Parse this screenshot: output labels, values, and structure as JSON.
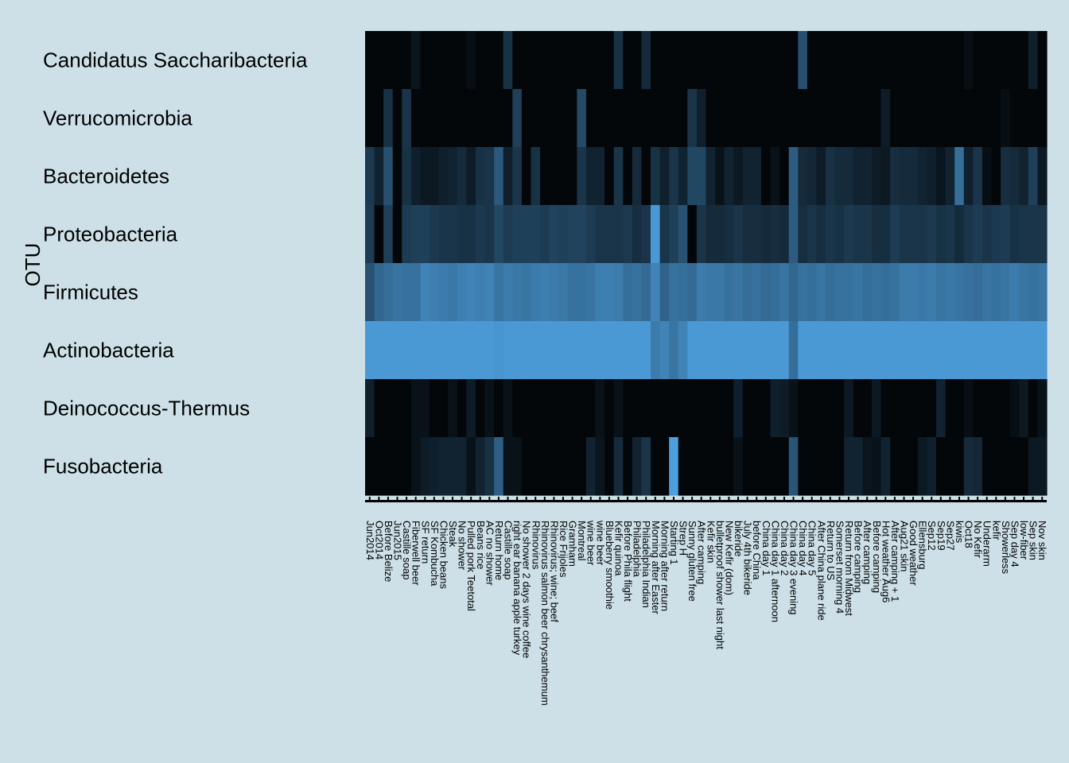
{
  "chart_data": {
    "type": "heatmap",
    "ylabel": "OTU",
    "xlabel": "",
    "rows": [
      "Candidatus Saccharibacteria",
      "Verrucomicrobia",
      "Bacteroidetes",
      "Proteobacteria",
      "Firmicutes",
      "Actinobacteria",
      "Deinococcus-Thermus",
      "Fusobacteria"
    ],
    "columns": [
      "Jun2014",
      "Oct2014",
      "Before Belize",
      "Jun2015",
      "Castille soap",
      "Fiberwell beer",
      "SF return",
      "SF Kombucha",
      "Chicken beans",
      "Steak",
      "No shower",
      "Pulled pork Teetotal",
      "Beans rice",
      "AC no shower",
      "Return home",
      "Castille soap",
      "right ear banana apple turkey",
      "No shower 2 days wine coffee",
      "Rhinovirus",
      "Rhinovirus salmon beer chrysanthemum",
      "Rhinovirus; wine; beef",
      "Rice Frijoles",
      "Gramham",
      "Montreal",
      "wine beer",
      "wine beer",
      "Blueberry smoothie",
      "Kefir quinoa",
      "Before Phila flight",
      "Philadelphia",
      "Philadelphia Indian",
      "Morning after Easter",
      "Morning after return",
      "Starting 1",
      "Strep H",
      "Sunny gluten free",
      "After camping",
      "Kefir skin",
      "bulletproof shower last night",
      "New Kefir (dom)",
      "bikeride",
      "July 4th bikeride",
      "before China",
      "China day 1",
      "China day 1 afternoon",
      "China day 2",
      "China day 3 evening",
      "China day 4",
      "China day 5",
      "After China plane ride",
      "Return to US",
      "Somerset morning 4",
      "Return from Midwest",
      "Before camping",
      "After camping",
      "Before camping",
      "Hot weather Aug6",
      "After camping + 1",
      "Aug21 skin",
      "Good weather",
      "Ellensburg",
      "Sep12",
      "Sep19",
      "Sep27",
      "kiwis",
      "Oct18",
      "No Kefir",
      "Underarm",
      "kefir",
      "Showerless",
      "Sep day 4",
      "low-fiber",
      "Sep skin",
      "Nov skin"
    ],
    "values": [
      [
        0.04,
        0.04,
        0.04,
        0.04,
        0.04,
        0.12,
        0.04,
        0.04,
        0.04,
        0.04,
        0.04,
        0.08,
        0.04,
        0.04,
        0.04,
        0.28,
        0.04,
        0.04,
        0.04,
        0.04,
        0.04,
        0.04,
        0.04,
        0.04,
        0.04,
        0.04,
        0.04,
        0.28,
        0.04,
        0.04,
        0.24,
        0.04,
        0.04,
        0.04,
        0.04,
        0.04,
        0.04,
        0.04,
        0.04,
        0.04,
        0.04,
        0.04,
        0.04,
        0.04,
        0.04,
        0.04,
        0.04,
        0.45,
        0.04,
        0.04,
        0.04,
        0.04,
        0.04,
        0.04,
        0.04,
        0.04,
        0.04,
        0.04,
        0.04,
        0.04,
        0.04,
        0.04,
        0.04,
        0.04,
        0.04,
        0.08,
        0.04,
        0.04,
        0.04,
        0.04,
        0.04,
        0.04,
        0.18,
        0.04
      ],
      [
        0.04,
        0.04,
        0.28,
        0.04,
        0.3,
        0.04,
        0.04,
        0.04,
        0.04,
        0.04,
        0.04,
        0.04,
        0.04,
        0.04,
        0.04,
        0.04,
        0.36,
        0.04,
        0.04,
        0.04,
        0.04,
        0.04,
        0.04,
        0.42,
        0.04,
        0.04,
        0.04,
        0.04,
        0.04,
        0.04,
        0.04,
        0.04,
        0.04,
        0.04,
        0.04,
        0.3,
        0.18,
        0.04,
        0.04,
        0.04,
        0.04,
        0.04,
        0.04,
        0.04,
        0.04,
        0.04,
        0.04,
        0.04,
        0.04,
        0.04,
        0.04,
        0.04,
        0.04,
        0.04,
        0.04,
        0.04,
        0.16,
        0.04,
        0.04,
        0.04,
        0.04,
        0.04,
        0.04,
        0.04,
        0.04,
        0.04,
        0.04,
        0.04,
        0.04,
        0.08,
        0.04,
        0.04,
        0.04,
        0.04
      ],
      [
        0.32,
        0.2,
        0.45,
        0.04,
        0.28,
        0.18,
        0.14,
        0.14,
        0.18,
        0.2,
        0.24,
        0.16,
        0.28,
        0.3,
        0.5,
        0.18,
        0.3,
        0.04,
        0.28,
        0.04,
        0.04,
        0.04,
        0.04,
        0.3,
        0.2,
        0.2,
        0.04,
        0.3,
        0.04,
        0.24,
        0.04,
        0.28,
        0.18,
        0.3,
        0.2,
        0.4,
        0.4,
        0.2,
        0.1,
        0.2,
        0.14,
        0.2,
        0.2,
        0.04,
        0.1,
        0.04,
        0.52,
        0.24,
        0.22,
        0.16,
        0.28,
        0.24,
        0.24,
        0.2,
        0.2,
        0.16,
        0.14,
        0.26,
        0.24,
        0.24,
        0.2,
        0.18,
        0.12,
        0.2,
        0.62,
        0.18,
        0.3,
        0.08,
        0.04,
        0.26,
        0.24,
        0.2,
        0.36,
        0.14
      ],
      [
        0.34,
        0.04,
        0.36,
        0.04,
        0.34,
        0.36,
        0.36,
        0.32,
        0.3,
        0.3,
        0.28,
        0.28,
        0.32,
        0.3,
        0.4,
        0.34,
        0.36,
        0.36,
        0.36,
        0.34,
        0.38,
        0.36,
        0.38,
        0.38,
        0.34,
        0.3,
        0.3,
        0.3,
        0.32,
        0.26,
        0.3,
        0.86,
        0.3,
        0.36,
        0.46,
        0.04,
        0.3,
        0.24,
        0.24,
        0.26,
        0.3,
        0.26,
        0.26,
        0.24,
        0.26,
        0.24,
        0.52,
        0.26,
        0.3,
        0.26,
        0.3,
        0.28,
        0.32,
        0.3,
        0.3,
        0.26,
        0.26,
        0.34,
        0.3,
        0.3,
        0.3,
        0.32,
        0.28,
        0.3,
        0.24,
        0.3,
        0.34,
        0.3,
        0.32,
        0.34,
        0.28,
        0.3,
        0.3,
        0.3
      ],
      [
        0.46,
        0.58,
        0.62,
        0.66,
        0.64,
        0.64,
        0.74,
        0.72,
        0.7,
        0.68,
        0.72,
        0.74,
        0.72,
        0.74,
        0.66,
        0.7,
        0.68,
        0.66,
        0.7,
        0.72,
        0.7,
        0.68,
        0.64,
        0.64,
        0.66,
        0.72,
        0.72,
        0.7,
        0.62,
        0.64,
        0.6,
        0.74,
        0.56,
        0.64,
        0.62,
        0.6,
        0.7,
        0.68,
        0.68,
        0.64,
        0.66,
        0.62,
        0.64,
        0.6,
        0.62,
        0.66,
        0.58,
        0.64,
        0.62,
        0.66,
        0.62,
        0.64,
        0.64,
        0.66,
        0.62,
        0.64,
        0.62,
        0.64,
        0.7,
        0.7,
        0.68,
        0.7,
        0.66,
        0.68,
        0.66,
        0.64,
        0.62,
        0.66,
        0.64,
        0.66,
        0.7,
        0.66,
        0.64,
        0.66
      ],
      [
        0.86,
        0.86,
        0.86,
        0.86,
        0.86,
        0.86,
        0.86,
        0.86,
        0.86,
        0.86,
        0.86,
        0.86,
        0.86,
        0.86,
        0.84,
        0.86,
        0.86,
        0.86,
        0.86,
        0.86,
        0.86,
        0.86,
        0.86,
        0.86,
        0.86,
        0.86,
        0.86,
        0.86,
        0.86,
        0.86,
        0.86,
        0.7,
        0.74,
        0.66,
        0.74,
        0.86,
        0.86,
        0.86,
        0.86,
        0.86,
        0.86,
        0.86,
        0.86,
        0.86,
        0.86,
        0.86,
        0.62,
        0.86,
        0.86,
        0.86,
        0.86,
        0.86,
        0.86,
        0.86,
        0.86,
        0.86,
        0.86,
        0.86,
        0.86,
        0.86,
        0.86,
        0.86,
        0.86,
        0.86,
        0.86,
        0.86,
        0.86,
        0.86,
        0.86,
        0.86,
        0.86,
        0.86,
        0.86,
        0.86
      ],
      [
        0.18,
        0.04,
        0.04,
        0.04,
        0.04,
        0.1,
        0.1,
        0.04,
        0.04,
        0.1,
        0.04,
        0.16,
        0.04,
        0.1,
        0.04,
        0.1,
        0.04,
        0.04,
        0.04,
        0.04,
        0.04,
        0.04,
        0.04,
        0.04,
        0.04,
        0.1,
        0.04,
        0.1,
        0.04,
        0.04,
        0.04,
        0.04,
        0.04,
        0.04,
        0.04,
        0.04,
        0.04,
        0.04,
        0.04,
        0.04,
        0.18,
        0.04,
        0.04,
        0.04,
        0.18,
        0.16,
        0.1,
        0.04,
        0.04,
        0.04,
        0.04,
        0.04,
        0.14,
        0.04,
        0.04,
        0.14,
        0.04,
        0.04,
        0.04,
        0.04,
        0.04,
        0.04,
        0.2,
        0.04,
        0.04,
        0.08,
        0.04,
        0.04,
        0.04,
        0.04,
        0.08,
        0.14,
        0.04,
        0.1
      ],
      [
        0.04,
        0.04,
        0.04,
        0.04,
        0.04,
        0.1,
        0.16,
        0.18,
        0.2,
        0.2,
        0.2,
        0.1,
        0.2,
        0.28,
        0.54,
        0.1,
        0.1,
        0.04,
        0.04,
        0.04,
        0.04,
        0.04,
        0.04,
        0.04,
        0.2,
        0.12,
        0.04,
        0.24,
        0.04,
        0.2,
        0.3,
        0.04,
        0.04,
        0.9,
        0.04,
        0.04,
        0.04,
        0.04,
        0.04,
        0.04,
        0.1,
        0.04,
        0.04,
        0.04,
        0.04,
        0.04,
        0.48,
        0.04,
        0.04,
        0.04,
        0.04,
        0.04,
        0.2,
        0.2,
        0.12,
        0.1,
        0.2,
        0.04,
        0.04,
        0.04,
        0.14,
        0.18,
        0.04,
        0.04,
        0.04,
        0.24,
        0.22,
        0.04,
        0.04,
        0.04,
        0.04,
        0.04,
        0.14,
        0.14
      ]
    ],
    "color_scale": {
      "low": "#000000",
      "high": "#56B1F7"
    },
    "background": "#cde0e8"
  }
}
